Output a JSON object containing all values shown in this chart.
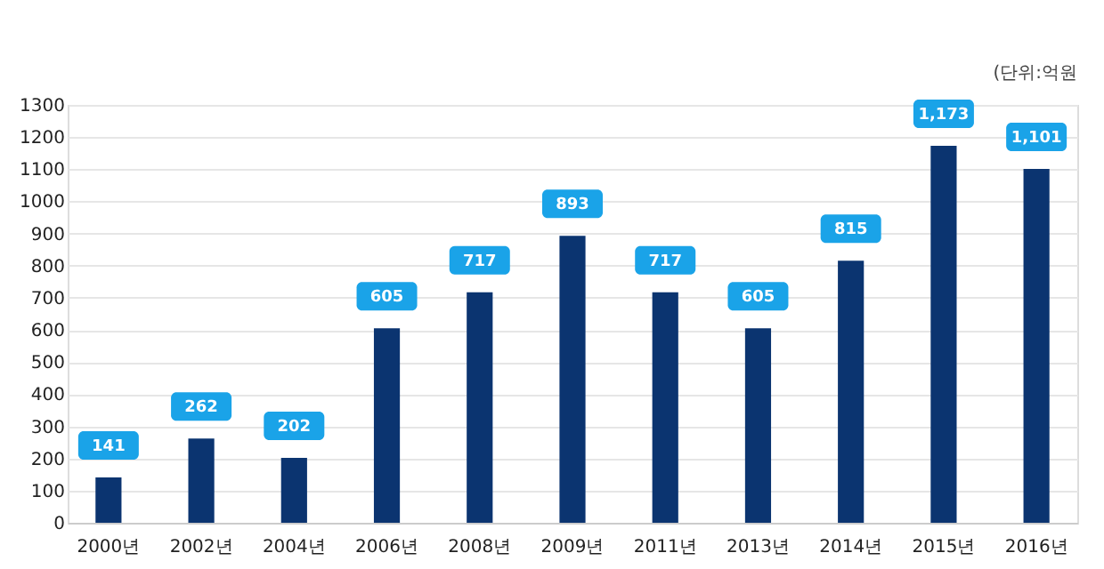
{
  "chart_data": {
    "type": "bar",
    "categories": [
      "2000년",
      "2002년",
      "2004년",
      "2006년",
      "2008년",
      "2009년",
      "2011년",
      "2013년",
      "2014년",
      "2015년",
      "2016년"
    ],
    "values": [
      141,
      262,
      202,
      605,
      717,
      893,
      717,
      605,
      815,
      1173,
      1101
    ],
    "value_labels": [
      "141",
      "262",
      "202",
      "605",
      "717",
      "893",
      "717",
      "605",
      "815",
      "1,173",
      "1,101"
    ],
    "color": "#0b3470",
    "ylim": [
      0,
      1300
    ],
    "yticks": [
      0,
      100,
      200,
      300,
      400,
      500,
      600,
      700,
      800,
      900,
      1000,
      1100,
      1200,
      1300
    ],
    "grid": "y",
    "annotations": [
      "(단위:억원"
    ]
  }
}
